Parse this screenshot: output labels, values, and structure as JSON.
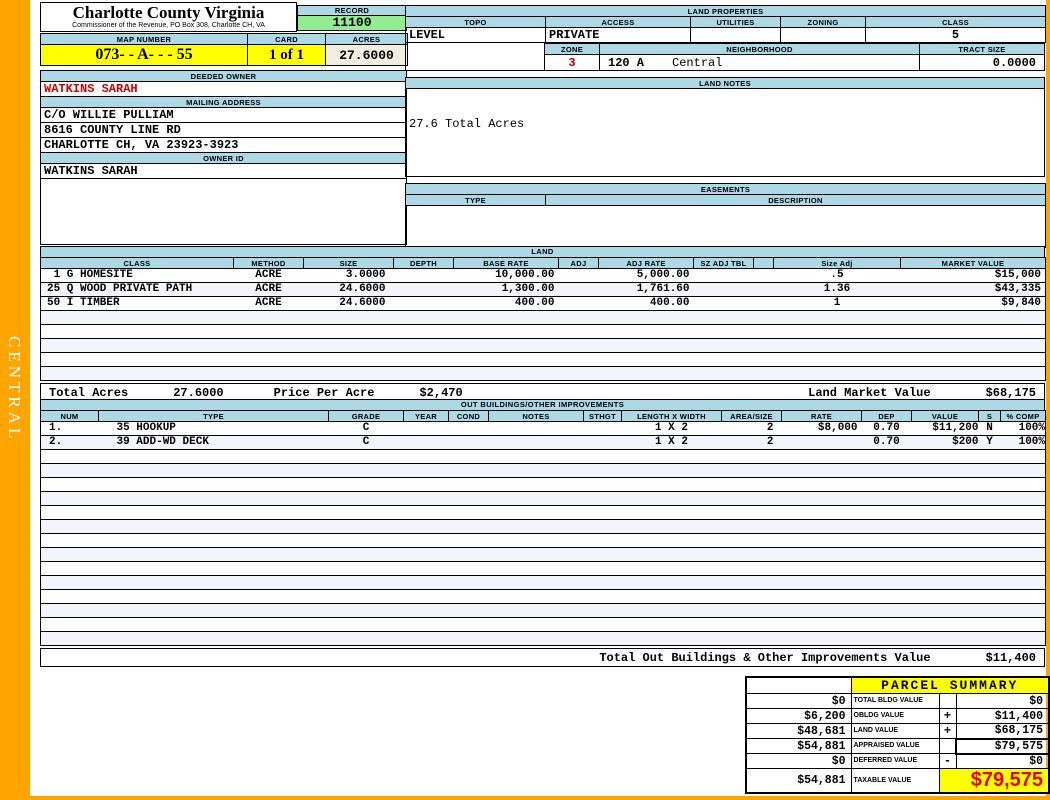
{
  "colors": {
    "frame_orange": "#FFA500",
    "header_blue": "#ADD8E6",
    "record_green": "#90EE90",
    "highlight_yellow": "#FFFF00",
    "acres_cream": "#F0EEE0",
    "owner_red": "#CC0000",
    "taxable_red": "#E60000",
    "row_stripe": "#F2F5F9"
  },
  "sidebar": {
    "district_label": "CENTRAL"
  },
  "header": {
    "county_title": "Charlotte County Virginia",
    "county_subtitle": "Commissioner of the Revenue, PO Box 308, Charlotte CH, VA",
    "record_label": "RECORD",
    "record_value": "11100",
    "map_number_label": "MAP NUMBER",
    "map_number_value": "073- - A-  -  - 55",
    "card_label": "CARD",
    "card_value": "1 of 1",
    "acres_label": "ACRES",
    "acres_value": "27.6000"
  },
  "owner": {
    "deeded_owner_label": "DEEDED OWNER",
    "deeded_owner": "WATKINS SARAH",
    "mailing_address_label": "MAILING ADDRESS",
    "address_lines": [
      "C/O WILLIE PULLIAM",
      "8616 COUNTY LINE RD",
      "CHARLOTTE CH, VA 23923-3923"
    ],
    "owner_id_label": "OWNER ID",
    "owner_id": "WATKINS SARAH"
  },
  "land_properties": {
    "title": "LAND PROPERTIES",
    "topo_label": "TOPO",
    "topo": "LEVEL",
    "access_label": "ACCESS",
    "access": "PRIVATE",
    "utilities_label": "UTILITIES",
    "utilities": "",
    "zoning_label": "ZONING",
    "zoning": "",
    "class_label": "CLASS",
    "class": "5",
    "zone_label": "ZONE",
    "zone": "3",
    "neighborhood_label": "NEIGHBORHOOD",
    "neighborhood_code": "120 A",
    "neighborhood_name": "Central",
    "tract_size_label": "TRACT SIZE",
    "tract_size": "0.0000"
  },
  "land_notes": {
    "title": "LAND NOTES",
    "note": "27.6 Total Acres"
  },
  "easements": {
    "title": "EASEMENTS",
    "type_label": "TYPE",
    "description_label": "DESCRIPTION"
  },
  "land": {
    "title": "LAND",
    "columns": [
      "CLASS",
      "METHOD",
      "SIZE",
      "DEPTH",
      "BASE RATE",
      "ADJ",
      "ADJ RATE",
      "SZ ADJ TBL",
      "",
      "Size Adj",
      "MARKET VALUE"
    ],
    "rows": [
      {
        "class": " 1 G HOMESITE",
        "method": "ACRE",
        "size": "3.0000",
        "depth": "",
        "base_rate": "10,000.00",
        "adj": "",
        "adj_rate": "5,000.00",
        "sz_adj_tbl": "",
        "blank": "",
        "size_adj": ".5",
        "market_value": "$15,000"
      },
      {
        "class": "25 Q WOOD PRIVATE PATH",
        "method": "ACRE",
        "size": "24.6000",
        "depth": "",
        "base_rate": "1,300.00",
        "adj": "",
        "adj_rate": "1,761.60",
        "sz_adj_tbl": "",
        "blank": "",
        "size_adj": "1.36",
        "market_value": "$43,335"
      },
      {
        "class": "50 I TIMBER",
        "method": "ACRE",
        "size": "24.6000",
        "depth": "",
        "base_rate": "400.00",
        "adj": "",
        "adj_rate": "400.00",
        "sz_adj_tbl": "",
        "blank": "",
        "size_adj": "1",
        "market_value": "$9,840"
      }
    ],
    "total_acres_label": "Total Acres",
    "total_acres": "27.6000",
    "price_per_acre_label": "Price Per Acre",
    "price_per_acre": "$2,470",
    "land_market_value_label": "Land Market Value",
    "land_market_value": "$68,175"
  },
  "out_buildings": {
    "title": "OUT BUILDINGS/OTHER IMPROVEMENTS",
    "columns": [
      "NUM",
      "TYPE",
      "GRADE",
      "YEAR",
      "COND",
      "NOTES",
      "STHGT",
      "LENGTH X WIDTH",
      "AREA/SIZE",
      "RATE",
      "DEP",
      "VALUE",
      "S",
      "% COMP"
    ],
    "rows": [
      {
        "num": "1.",
        "type": "35 HOOKUP",
        "grade": "C",
        "year": "",
        "cond": "",
        "notes": "",
        "sthgt": "",
        "length_width": "1 X 2",
        "area_size": "2",
        "rate": "$8,000",
        "dep": "0.70",
        "value": "$11,200",
        "s": "N",
        "pct_comp": "100%"
      },
      {
        "num": "2.",
        "type": "39 ADD-WD DECK",
        "grade": "C",
        "year": "",
        "cond": "",
        "notes": "",
        "sthgt": "",
        "length_width": "1 X 2",
        "area_size": "2",
        "rate": "",
        "dep": "0.70",
        "value": "$200",
        "s": "Y",
        "pct_comp": "100%"
      }
    ],
    "total_label": "Total Out Buildings & Other Improvements Value",
    "total_value": "$11,400"
  },
  "parcel_summary": {
    "title": "PARCEL SUMMARY",
    "rows": [
      {
        "prior": "$0",
        "label": "TOTAL BLDG VALUE",
        "op": "",
        "value": "$0"
      },
      {
        "prior": "$6,200",
        "label": "OBLDG VALUE",
        "op": "+",
        "value": "$11,400"
      },
      {
        "prior": "$48,681",
        "label": "LAND VALUE",
        "op": "+",
        "value": "$68,175"
      },
      {
        "prior": "$54,881",
        "label": "APPRAISED VALUE",
        "op": "",
        "value": "$79,575"
      },
      {
        "prior": "$0",
        "label": "DEFERRED VALUE",
        "op": "-",
        "value": "$0"
      }
    ],
    "taxable_prior": "$54,881",
    "taxable_label": "TAXABLE VALUE",
    "taxable_value": "$79,575"
  }
}
